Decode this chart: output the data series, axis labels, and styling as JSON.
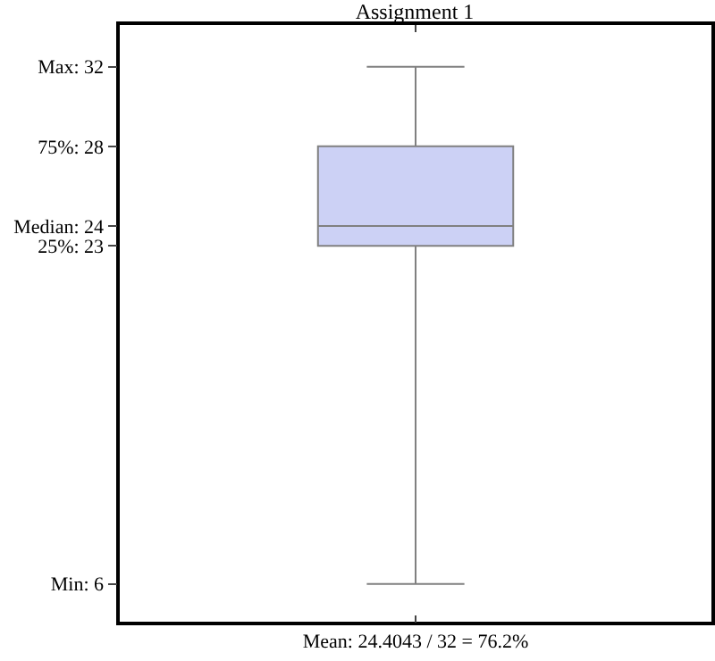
{
  "chart_data": {
    "type": "box",
    "title": "Assignment 1",
    "xlabel": "Mean: 24.4043 / 32 = 76.2%",
    "categories": [
      null
    ],
    "boxes": [
      {
        "low": 6,
        "q1": 23,
        "median": 24,
        "q3": 28,
        "high": 32
      }
    ],
    "color": "#ccd1f5",
    "ylim": [
      4.1,
      34.1
    ],
    "yticks": [
      {
        "value": 6,
        "label": "Min: 6"
      },
      {
        "value": 23,
        "label": "25%: 23"
      },
      {
        "value": 24,
        "label": "Median: 24"
      },
      {
        "value": 28,
        "label": "75%: 28"
      },
      {
        "value": 32,
        "label": "Max: 32"
      }
    ],
    "grid": false
  }
}
